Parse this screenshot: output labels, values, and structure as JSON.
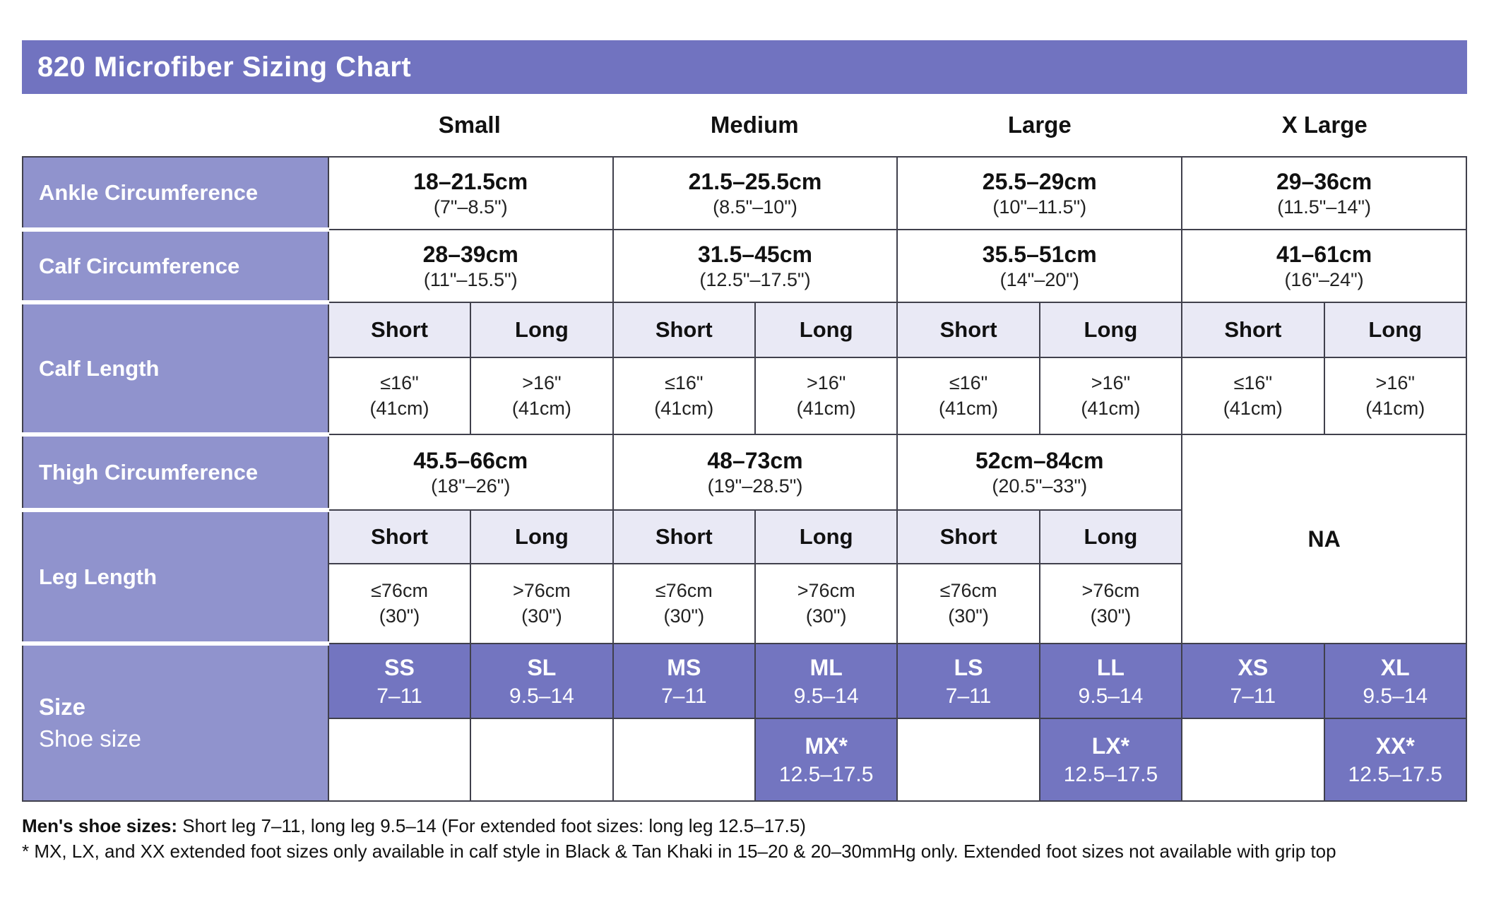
{
  "title": "820 Microfiber Sizing Chart",
  "columns": [
    "Small",
    "Medium",
    "Large",
    "X Large"
  ],
  "labels": {
    "short": "Short",
    "long": "Long",
    "na": "NA"
  },
  "rows": {
    "ankle": {
      "label": "Ankle Circumference",
      "values": [
        {
          "cm": "18–21.5cm",
          "inches": "(7\"–8.5\")"
        },
        {
          "cm": "21.5–25.5cm",
          "inches": "(8.5\"–10\")"
        },
        {
          "cm": "25.5–29cm",
          "inches": "(10\"–11.5\")"
        },
        {
          "cm": "29–36cm",
          "inches": "(11.5\"–14\")"
        }
      ]
    },
    "calf_circumference": {
      "label": "Calf Circumference",
      "values": [
        {
          "cm": "28–39cm",
          "inches": "(11\"–15.5\")"
        },
        {
          "cm": "31.5–45cm",
          "inches": "(12.5\"–17.5\")"
        },
        {
          "cm": "35.5–51cm",
          "inches": "(14\"–20\")"
        },
        {
          "cm": "41–61cm",
          "inches": "(16\"–24\")"
        }
      ]
    },
    "calf_length": {
      "label": "Calf Length",
      "short": {
        "value": "≤16\"",
        "paren": "(41cm)"
      },
      "long": {
        "value": ">16\"",
        "paren": "(41cm)"
      }
    },
    "thigh": {
      "label": "Thigh Circumference",
      "values": [
        {
          "cm": "45.5–66cm",
          "inches": "(18\"–26\")"
        },
        {
          "cm": "48–73cm",
          "inches": "(19\"–28.5\")"
        },
        {
          "cm": "52cm–84cm",
          "inches": "(20.5\"–33\")"
        }
      ]
    },
    "leg_length": {
      "label": "Leg Length",
      "short": {
        "value": "≤76cm",
        "paren": "(30\")"
      },
      "long": {
        "value": ">76cm",
        "paren": "(30\")"
      }
    },
    "size": {
      "label_bold": "Size",
      "label_sub": "Shoe size",
      "cells": [
        {
          "code": "SS",
          "range": "7–11"
        },
        {
          "code": "SL",
          "range": "9.5–14"
        },
        {
          "code": "MS",
          "range": "7–11"
        },
        {
          "code": "ML",
          "range": "9.5–14"
        },
        {
          "code": "LS",
          "range": "7–11"
        },
        {
          "code": "LL",
          "range": "9.5–14"
        },
        {
          "code": "XS",
          "range": "7–11"
        },
        {
          "code": "XL",
          "range": "9.5–14"
        }
      ],
      "extended": [
        {
          "code": "MX*",
          "range": "12.5–17.5"
        },
        {
          "code": "LX*",
          "range": "12.5–17.5"
        },
        {
          "code": "XX*",
          "range": "12.5–17.5"
        }
      ]
    }
  },
  "footnotes": {
    "note1_bold": "Men's shoe sizes:",
    "note1_rest": " Short leg 7–11, long leg 9.5–14 (For extended foot sizes: long leg 12.5–17.5)",
    "note2": "* MX, LX, and XX extended foot sizes only available in calf style in Black & Tan Khaki in 15–20 & 20–30mmHg only. Extended foot sizes not available with grip top"
  },
  "colors": {
    "header_purple": "#7173c0",
    "label_purple": "#9093cd",
    "size_cell_purple": "#7375c0",
    "subheader_lavender": "#e9e9f5",
    "border_dark": "#40404c"
  }
}
